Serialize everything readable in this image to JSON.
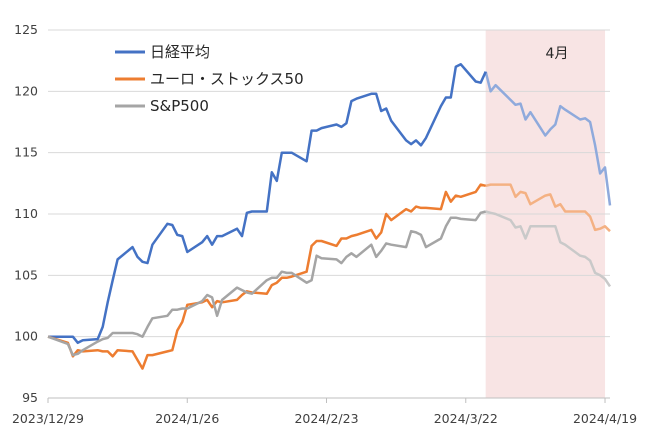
{
  "chart_data": {
    "type": "line",
    "title": "",
    "xlabel": "",
    "ylabel": "",
    "ylim": [
      95,
      125
    ],
    "yticks": [
      95,
      100,
      105,
      110,
      115,
      120,
      125
    ],
    "grid": "horizontal",
    "legend_position": "top-left",
    "x_tick_labels": [
      "2023/12/29",
      "2024/1/26",
      "2024/2/23",
      "2024/3/22",
      "2024/4/19"
    ],
    "highlight": {
      "label": "4月",
      "from_day": 88,
      "to_day": 112,
      "color": "#f8e4e4"
    },
    "series": [
      {
        "name": "日経平均",
        "color": "#4472c4",
        "faded_color": "#8faadc",
        "points": [
          [
            0,
            100
          ],
          [
            4,
            100
          ],
          [
            5,
            100
          ],
          [
            6,
            99.5
          ],
          [
            7,
            99.7
          ],
          [
            10,
            99.8
          ],
          [
            11,
            100.8
          ],
          [
            12,
            102.8
          ],
          [
            13,
            104.6
          ],
          [
            14,
            106.3
          ],
          [
            17,
            107.3
          ],
          [
            18,
            106.5
          ],
          [
            19,
            106.1
          ],
          [
            20,
            106
          ],
          [
            21,
            107.5
          ],
          [
            24,
            109.2
          ],
          [
            25,
            109.1
          ],
          [
            26,
            108.3
          ],
          [
            27,
            108.2
          ],
          [
            28,
            106.9
          ],
          [
            31,
            107.7
          ],
          [
            32,
            108.2
          ],
          [
            33,
            107.5
          ],
          [
            34,
            108.2
          ],
          [
            35,
            108.2
          ],
          [
            38,
            108.8
          ],
          [
            39,
            108.2
          ],
          [
            40,
            110.1
          ],
          [
            41,
            110.2
          ],
          [
            44,
            110.2
          ],
          [
            45,
            113.4
          ],
          [
            46,
            112.7
          ],
          [
            47,
            115
          ],
          [
            48,
            115
          ],
          [
            49,
            115
          ],
          [
            52,
            114.3
          ],
          [
            53,
            116.8
          ],
          [
            54,
            116.8
          ],
          [
            55,
            117
          ],
          [
            58,
            117.3
          ],
          [
            59,
            117.1
          ],
          [
            60,
            117.4
          ],
          [
            61,
            119.2
          ],
          [
            62,
            119.4
          ],
          [
            65,
            119.8
          ],
          [
            66,
            119.8
          ],
          [
            67,
            118.4
          ],
          [
            68,
            118.6
          ],
          [
            69,
            117.6
          ],
          [
            72,
            116
          ],
          [
            73,
            115.7
          ],
          [
            74,
            116
          ],
          [
            75,
            115.6
          ],
          [
            76,
            116.2
          ],
          [
            79,
            118.8
          ],
          [
            80,
            119.5
          ],
          [
            81,
            119.5
          ],
          [
            82,
            122
          ],
          [
            83,
            122.2
          ],
          [
            86,
            120.8
          ],
          [
            87,
            120.7
          ],
          [
            88,
            121.6
          ],
          [
            89,
            120
          ],
          [
            90,
            120.5
          ],
          [
            93,
            119.3
          ],
          [
            94,
            118.9
          ],
          [
            95,
            119
          ],
          [
            96,
            117.7
          ],
          [
            97,
            118.3
          ],
          [
            100,
            116.4
          ],
          [
            101,
            116.9
          ],
          [
            102,
            117.3
          ],
          [
            103,
            118.8
          ],
          [
            104,
            118.5
          ],
          [
            107,
            117.7
          ],
          [
            108,
            117.8
          ],
          [
            109,
            117.5
          ],
          [
            110,
            115.6
          ],
          [
            111,
            113.3
          ],
          [
            112,
            113.8
          ],
          [
            113,
            110.7
          ]
        ]
      },
      {
        "name": "ユーロ・ストックス50",
        "color": "#ed7d31",
        "faded_color": "#f4b183",
        "points": [
          [
            0,
            100
          ],
          [
            4,
            99.5
          ],
          [
            5,
            98.4
          ],
          [
            6,
            98.9
          ],
          [
            7,
            98.8
          ],
          [
            10,
            98.9
          ],
          [
            11,
            98.8
          ],
          [
            12,
            98.8
          ],
          [
            13,
            98.4
          ],
          [
            14,
            98.9
          ],
          [
            17,
            98.8
          ],
          [
            18,
            98.1
          ],
          [
            19,
            97.4
          ],
          [
            20,
            98.5
          ],
          [
            21,
            98.5
          ],
          [
            24,
            98.8
          ],
          [
            25,
            98.9
          ],
          [
            26,
            100.5
          ],
          [
            27,
            101.2
          ],
          [
            28,
            102.6
          ],
          [
            31,
            102.8
          ],
          [
            32,
            103
          ],
          [
            33,
            102.4
          ],
          [
            34,
            102.9
          ],
          [
            35,
            102.8
          ],
          [
            38,
            103
          ],
          [
            39,
            103.4
          ],
          [
            40,
            103.7
          ],
          [
            41,
            103.6
          ],
          [
            44,
            103.5
          ],
          [
            45,
            104.2
          ],
          [
            46,
            104.4
          ],
          [
            47,
            104.8
          ],
          [
            48,
            104.8
          ],
          [
            49,
            104.9
          ],
          [
            52,
            105.3
          ],
          [
            53,
            107.4
          ],
          [
            54,
            107.8
          ],
          [
            55,
            107.8
          ],
          [
            58,
            107.4
          ],
          [
            59,
            108
          ],
          [
            60,
            108
          ],
          [
            61,
            108.2
          ],
          [
            62,
            108.3
          ],
          [
            65,
            108.7
          ],
          [
            66,
            108
          ],
          [
            67,
            108.5
          ],
          [
            68,
            110
          ],
          [
            69,
            109.5
          ],
          [
            72,
            110.4
          ],
          [
            73,
            110.2
          ],
          [
            74,
            110.6
          ],
          [
            75,
            110.5
          ],
          [
            76,
            110.5
          ],
          [
            79,
            110.4
          ],
          [
            80,
            111.8
          ],
          [
            81,
            111
          ],
          [
            82,
            111.5
          ],
          [
            83,
            111.4
          ],
          [
            86,
            111.8
          ],
          [
            87,
            112.4
          ],
          [
            88,
            112.3
          ],
          [
            89,
            112.4
          ],
          [
            90,
            112.4
          ],
          [
            93,
            112.4
          ],
          [
            94,
            111.4
          ],
          [
            95,
            111.8
          ],
          [
            96,
            111.7
          ],
          [
            97,
            110.8
          ],
          [
            100,
            111.5
          ],
          [
            101,
            111.6
          ],
          [
            102,
            110.6
          ],
          [
            103,
            110.8
          ],
          [
            104,
            110.2
          ],
          [
            107,
            110.2
          ],
          [
            108,
            110.2
          ],
          [
            109,
            109.8
          ],
          [
            110,
            108.7
          ],
          [
            111,
            108.8
          ],
          [
            112,
            109
          ],
          [
            113,
            108.6
          ]
        ]
      },
      {
        "name": "S&P500",
        "color": "#a5a5a5",
        "faded_color": "#c9c9c9",
        "points": [
          [
            0,
            100
          ],
          [
            4,
            99.4
          ],
          [
            5,
            98.5
          ],
          [
            6,
            98.6
          ],
          [
            7,
            98.9
          ],
          [
            10,
            99.6
          ],
          [
            11,
            99.8
          ],
          [
            12,
            99.9
          ],
          [
            13,
            100.3
          ],
          [
            14,
            100.3
          ],
          [
            17,
            100.3
          ],
          [
            18,
            100.2
          ],
          [
            19,
            100
          ],
          [
            20,
            100.8
          ],
          [
            21,
            101.5
          ],
          [
            24,
            101.7
          ],
          [
            25,
            102.2
          ],
          [
            26,
            102.2
          ],
          [
            27,
            102.3
          ],
          [
            28,
            102.3
          ],
          [
            31,
            102.9
          ],
          [
            32,
            103.4
          ],
          [
            33,
            103.2
          ],
          [
            34,
            101.7
          ],
          [
            35,
            103
          ],
          [
            38,
            104
          ],
          [
            39,
            103.8
          ],
          [
            40,
            103.6
          ],
          [
            41,
            103.5
          ],
          [
            44,
            104.6
          ],
          [
            45,
            104.8
          ],
          [
            46,
            104.8
          ],
          [
            47,
            105.3
          ],
          [
            48,
            105.2
          ],
          [
            49,
            105.2
          ],
          [
            52,
            104.4
          ],
          [
            53,
            104.6
          ],
          [
            54,
            106.6
          ],
          [
            55,
            106.4
          ],
          [
            58,
            106.3
          ],
          [
            59,
            106
          ],
          [
            60,
            106.5
          ],
          [
            61,
            106.8
          ],
          [
            62,
            106.5
          ],
          [
            65,
            107.5
          ],
          [
            66,
            106.5
          ],
          [
            67,
            107
          ],
          [
            68,
            107.6
          ],
          [
            69,
            107.5
          ],
          [
            72,
            107.3
          ],
          [
            73,
            108.6
          ],
          [
            74,
            108.5
          ],
          [
            75,
            108.3
          ],
          [
            76,
            107.3
          ],
          [
            79,
            108
          ],
          [
            80,
            109
          ],
          [
            81,
            109.7
          ],
          [
            82,
            109.7
          ],
          [
            83,
            109.6
          ],
          [
            86,
            109.5
          ],
          [
            87,
            110.1
          ],
          [
            88,
            110.2
          ],
          [
            89,
            110.1
          ],
          [
            90,
            110
          ],
          [
            93,
            109.5
          ],
          [
            94,
            108.9
          ],
          [
            95,
            109
          ],
          [
            96,
            108
          ],
          [
            97,
            109
          ],
          [
            100,
            109
          ],
          [
            101,
            109
          ],
          [
            102,
            109
          ],
          [
            103,
            107.7
          ],
          [
            104,
            107.5
          ],
          [
            107,
            106.6
          ],
          [
            108,
            106.5
          ],
          [
            109,
            106.2
          ],
          [
            110,
            105.2
          ],
          [
            111,
            105
          ],
          [
            112,
            104.7
          ],
          [
            113,
            104.1
          ]
        ]
      }
    ]
  }
}
